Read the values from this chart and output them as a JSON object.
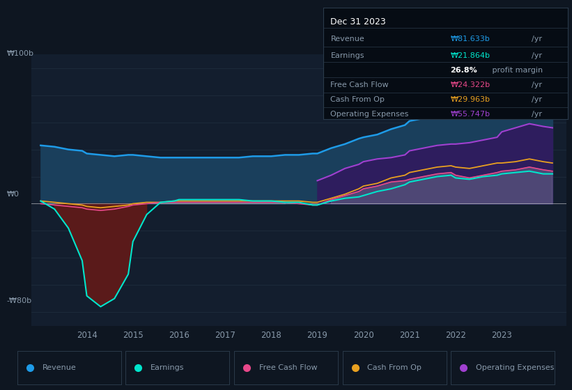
{
  "bg_color": "#0e1621",
  "plot_bg_color": "#131e2e",
  "title": "Dec 31 2023",
  "ylabel_top": "₩100b",
  "ylabel_bottom": "-₩80b",
  "ylabel_zero": "₩0",
  "years": [
    2013.0,
    2013.3,
    2013.6,
    2013.9,
    2014.0,
    2014.3,
    2014.6,
    2014.9,
    2015.0,
    2015.3,
    2015.6,
    2015.9,
    2016.0,
    2016.3,
    2016.6,
    2016.9,
    2017.0,
    2017.3,
    2017.6,
    2017.9,
    2018.0,
    2018.3,
    2018.6,
    2018.9,
    2019.0,
    2019.3,
    2019.6,
    2019.9,
    2020.0,
    2020.3,
    2020.6,
    2020.9,
    2021.0,
    2021.3,
    2021.6,
    2021.9,
    2022.0,
    2022.3,
    2022.6,
    2022.9,
    2023.0,
    2023.3,
    2023.6,
    2023.9,
    2024.1
  ],
  "revenue": [
    43,
    42,
    40,
    39,
    37,
    36,
    35,
    36,
    36,
    35,
    34,
    34,
    34,
    34,
    34,
    34,
    34,
    34,
    35,
    35,
    35,
    36,
    36,
    37,
    37,
    41,
    44,
    48,
    49,
    51,
    55,
    58,
    61,
    63,
    66,
    68,
    68,
    69,
    71,
    73,
    77,
    81,
    86,
    84,
    82
  ],
  "earnings": [
    2,
    -4,
    -18,
    -42,
    -68,
    -76,
    -70,
    -52,
    -28,
    -8,
    1,
    2,
    3,
    3,
    3,
    3,
    3,
    3,
    2,
    2,
    2,
    1,
    1,
    -1,
    -1,
    2,
    4,
    5,
    6,
    9,
    11,
    14,
    16,
    18,
    20,
    21,
    19,
    18,
    20,
    21,
    22,
    23,
    24,
    22,
    22
  ],
  "free_cash_flow": [
    0,
    -1,
    -2,
    -3,
    -4,
    -5,
    -4,
    -2,
    -1,
    0,
    1,
    1,
    1,
    1,
    1,
    1,
    1,
    1,
    1,
    1,
    1,
    1,
    0,
    -1,
    -1,
    3,
    6,
    9,
    11,
    13,
    16,
    17,
    18,
    20,
    22,
    23,
    21,
    19,
    21,
    23,
    24,
    25,
    27,
    25,
    24
  ],
  "cash_from_op": [
    2,
    1,
    0,
    -1,
    -2,
    -3,
    -2,
    -1,
    0,
    1,
    1,
    2,
    2,
    2,
    2,
    2,
    2,
    2,
    2,
    2,
    2,
    2,
    2,
    1,
    1,
    4,
    7,
    11,
    13,
    15,
    19,
    21,
    23,
    25,
    27,
    28,
    27,
    26,
    28,
    30,
    30,
    31,
    33,
    31,
    30
  ],
  "operating_expenses": [
    0,
    0,
    0,
    0,
    0,
    0,
    0,
    0,
    0,
    0,
    0,
    0,
    0,
    0,
    0,
    0,
    0,
    0,
    0,
    0,
    0,
    0,
    0,
    0,
    17,
    21,
    26,
    29,
    31,
    33,
    34,
    36,
    39,
    41,
    43,
    44,
    44,
    45,
    47,
    49,
    53,
    56,
    59,
    57,
    56
  ],
  "revenue_color": "#1e9be8",
  "earnings_color": "#00e5cc",
  "free_cash_flow_color": "#e8488a",
  "cash_from_op_color": "#e8a020",
  "operating_expenses_color": "#a040d0",
  "revenue_fill": "#1a3f5c",
  "earnings_neg_fill": "#5a1a1a",
  "op_exp_fill": "#2e1d5e",
  "fcf_fill": "#6a6a88",
  "text_color": "#8899aa",
  "grid_color": "#1e2d3d",
  "zero_line_color": "#cccccc",
  "info_box_bg": "#060c14",
  "info_box_border": "#2a3a4a",
  "legend_bg": "#0e1621",
  "legend_border": "#2a3a4a",
  "revenue_label": "Revenue",
  "earnings_label": "Earnings",
  "fcf_label": "Free Cash Flow",
  "cfop_label": "Cash From Op",
  "opex_label": "Operating Expenses",
  "info_revenue_val": "₩81.633b",
  "info_earnings_val": "₩21.864b",
  "info_profit_margin": "26.8%",
  "info_fcf_val": "₩24.322b",
  "info_cfop_val": "₩29.963b",
  "info_opex_val": "₩55.747b",
  "ylim": [
    -90,
    110
  ],
  "xlim": [
    2012.8,
    2024.4
  ],
  "xticks": [
    2014,
    2015,
    2016,
    2017,
    2018,
    2019,
    2020,
    2021,
    2022,
    2023
  ]
}
